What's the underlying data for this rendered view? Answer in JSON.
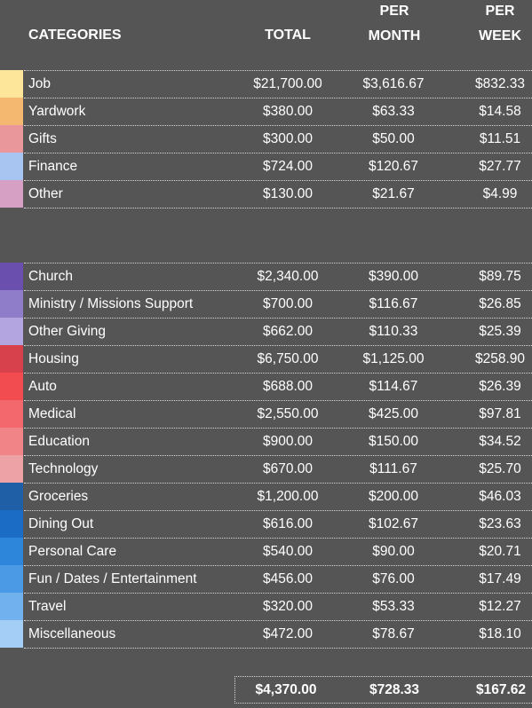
{
  "header": {
    "categories": "CATEGORIES",
    "total": "TOTAL",
    "per_month_top": "PER",
    "per_month_bottom": "MONTH",
    "per_week_top": "PER",
    "per_week_bottom": "WEEK"
  },
  "income": [
    {
      "name": "Job",
      "total": "$21,700.00",
      "month": "$3,616.67",
      "week": "$832.33",
      "color": "#fde59a"
    },
    {
      "name": "Yardwork",
      "total": "$380.00",
      "month": "$63.33",
      "week": "$14.58",
      "color": "#f4b870"
    },
    {
      "name": "Gifts",
      "total": "$300.00",
      "month": "$50.00",
      "week": "$11.51",
      "color": "#e9979b"
    },
    {
      "name": "Finance",
      "total": "$724.00",
      "month": "$120.67",
      "week": "$27.77",
      "color": "#a8c5f2"
    },
    {
      "name": "Other",
      "total": "$130.00",
      "month": "$21.67",
      "week": "$4.99",
      "color": "#d6a0c4"
    }
  ],
  "expenses": [
    {
      "name": "Church",
      "total": "$2,340.00",
      "month": "$390.00",
      "week": "$89.75",
      "color": "#6a4fae"
    },
    {
      "name": "Ministry / Missions Support",
      "total": "$700.00",
      "month": "$116.67",
      "week": "$26.85",
      "color": "#8f7dc9"
    },
    {
      "name": "Other Giving",
      "total": "$662.00",
      "month": "$110.33",
      "week": "$25.39",
      "color": "#b3a6e0"
    },
    {
      "name": "Housing",
      "total": "$6,750.00",
      "month": "$1,125.00",
      "week": "$258.90",
      "color": "#d6414b"
    },
    {
      "name": "Auto",
      "total": "$688.00",
      "month": "$114.67",
      "week": "$26.39",
      "color": "#f24c50"
    },
    {
      "name": "Medical",
      "total": "$2,550.00",
      "month": "$425.00",
      "week": "$97.81",
      "color": "#f2686d"
    },
    {
      "name": "Education",
      "total": "$900.00",
      "month": "$150.00",
      "week": "$34.52",
      "color": "#f08487"
    },
    {
      "name": "Technology",
      "total": "$670.00",
      "month": "$111.67",
      "week": "$25.70",
      "color": "#eda3a6"
    },
    {
      "name": "Groceries",
      "total": "$1,200.00",
      "month": "$200.00",
      "week": "$46.03",
      "color": "#1f5fa6"
    },
    {
      "name": "Dining Out",
      "total": "$616.00",
      "month": "$102.67",
      "week": "$23.63",
      "color": "#1a6cc4"
    },
    {
      "name": "Personal Care",
      "total": "$540.00",
      "month": "$90.00",
      "week": "$20.71",
      "color": "#2d86da"
    },
    {
      "name": "Fun / Dates / Entertainment",
      "total": "$456.00",
      "month": "$76.00",
      "week": "$17.49",
      "color": "#4a9ae6"
    },
    {
      "name": "Travel",
      "total": "$320.00",
      "month": "$53.33",
      "week": "$12.27",
      "color": "#71b1ee"
    },
    {
      "name": "Miscellaneous",
      "total": "$472.00",
      "month": "$78.67",
      "week": "$18.10",
      "color": "#a4cef5"
    }
  ],
  "totals": {
    "total": "$4,370.00",
    "month": "$728.33",
    "week": "$167.62"
  }
}
